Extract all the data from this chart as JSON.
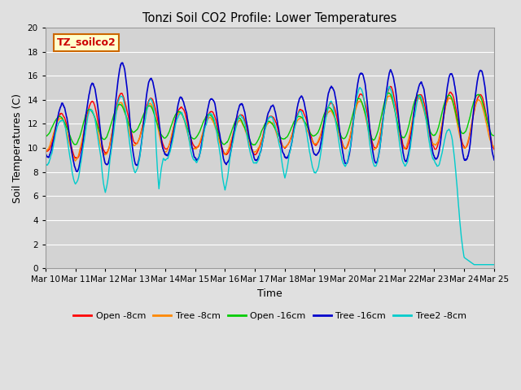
{
  "title": "Tonzi Soil CO2 Profile: Lower Temperatures",
  "xlabel": "Time",
  "ylabel": "Soil Temperatures (C)",
  "ylim": [
    0,
    20
  ],
  "xlim": [
    0,
    360
  ],
  "fig_bg": "#e0e0e0",
  "plot_bg": "#d3d3d3",
  "grid_color": "#ffffff",
  "annotation_text": "TZ_soilco2",
  "annotation_color": "#cc0000",
  "annotation_bg": "#ffffcc",
  "annotation_border": "#cc6600",
  "series_colors": [
    "#ff0000",
    "#ff8800",
    "#00cc00",
    "#0000cc",
    "#00cccc"
  ],
  "series_labels": [
    "Open -8cm",
    "Tree -8cm",
    "Open -16cm",
    "Tree -16cm",
    "Tree2 -8cm"
  ],
  "xtick_positions": [
    0,
    24,
    48,
    72,
    96,
    120,
    144,
    168,
    192,
    216,
    240,
    264,
    288,
    312,
    336,
    360
  ],
  "xtick_labels": [
    "Mar 10",
    "Mar 11",
    "Mar 12",
    "Mar 13",
    "Mar 14",
    "Mar 15",
    "Mar 16",
    "Mar 17",
    "Mar 18",
    "Mar 19",
    "Mar 20",
    "Mar 21",
    "Mar 22",
    "Mar 23",
    "Mar 24",
    "Mar 25"
  ]
}
